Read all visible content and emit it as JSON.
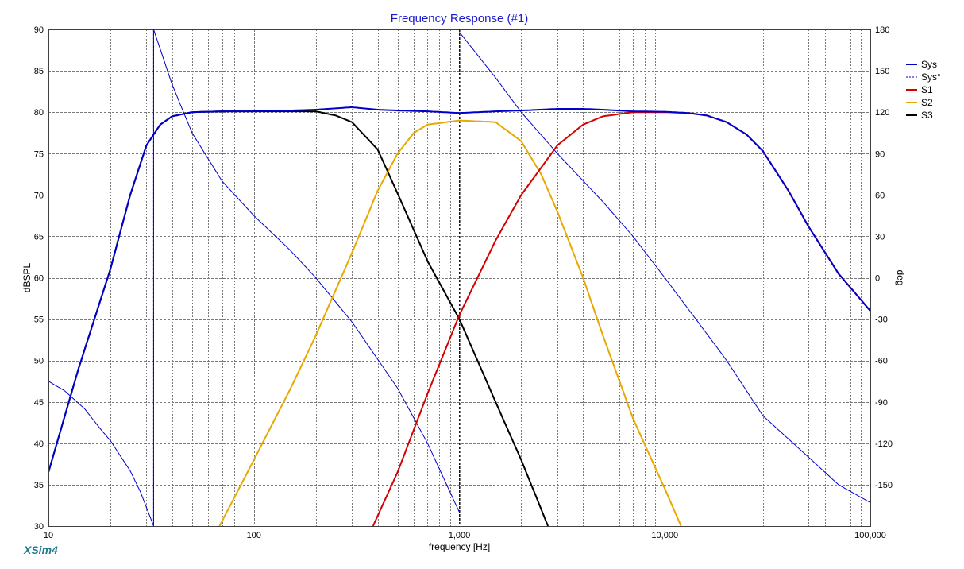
{
  "window": {
    "app_name": "XSim4"
  },
  "colors": {
    "background": "#ffffff",
    "grid": "#7a7a7a",
    "title": "#1a1ad0",
    "sys": "#0000cc",
    "sys_phase": "#0000cc",
    "s1": "#d40000",
    "s2": "#e8a800",
    "s3": "#000000",
    "brand": "#1f7a8c"
  },
  "chart_data": {
    "type": "line",
    "title": "Frequency Response (#1)",
    "xlabel": "frequency [Hz]",
    "ylabel": "dBSPL",
    "y2label": "deg",
    "xscale": "log",
    "xlim": [
      10,
      100000
    ],
    "ylim": [
      30,
      90
    ],
    "y2lim": [
      -180,
      180
    ],
    "grid": true,
    "legend_position": "right",
    "x_ticks": [
      {
        "value": 10,
        "label": "10"
      },
      {
        "value": 100,
        "label": "100"
      },
      {
        "value": 1000,
        "label": "1,000"
      },
      {
        "value": 10000,
        "label": "10,000"
      },
      {
        "value": 100000,
        "label": "100,000"
      }
    ],
    "y_ticks": [
      {
        "value": 30,
        "label": "30"
      },
      {
        "value": 35,
        "label": "35"
      },
      {
        "value": 40,
        "label": "40"
      },
      {
        "value": 45,
        "label": "45"
      },
      {
        "value": 50,
        "label": "50"
      },
      {
        "value": 55,
        "label": "55"
      },
      {
        "value": 60,
        "label": "60"
      },
      {
        "value": 65,
        "label": "65"
      },
      {
        "value": 70,
        "label": "70"
      },
      {
        "value": 75,
        "label": "75"
      },
      {
        "value": 80,
        "label": "80"
      },
      {
        "value": 85,
        "label": "85"
      },
      {
        "value": 90,
        "label": "90"
      }
    ],
    "y2_ticks": [
      {
        "value": 180,
        "label": "180"
      },
      {
        "value": 150,
        "label": "150"
      },
      {
        "value": 120,
        "label": "120"
      },
      {
        "value": 90,
        "label": "90"
      },
      {
        "value": 60,
        "label": "60"
      },
      {
        "value": 30,
        "label": "30"
      },
      {
        "value": 0,
        "label": "0"
      },
      {
        "value": -30,
        "label": "-30"
      },
      {
        "value": -60,
        "label": "-60"
      },
      {
        "value": -90,
        "label": "-90"
      },
      {
        "value": -120,
        "label": "-120"
      },
      {
        "value": -150,
        "label": "-150"
      }
    ],
    "series": [
      {
        "name": "Sys",
        "axis": "left",
        "style": "solid",
        "color_key": "sys",
        "width": 2,
        "points": [
          [
            10,
            36.5
          ],
          [
            14,
            49
          ],
          [
            20,
            61
          ],
          [
            25,
            70
          ],
          [
            30,
            76
          ],
          [
            35,
            78.5
          ],
          [
            40,
            79.5
          ],
          [
            50,
            80
          ],
          [
            70,
            80.1
          ],
          [
            100,
            80.1
          ],
          [
            150,
            80.2
          ],
          [
            200,
            80.3
          ],
          [
            300,
            80.6
          ],
          [
            400,
            80.3
          ],
          [
            500,
            80.2
          ],
          [
            700,
            80.1
          ],
          [
            1000,
            79.9
          ],
          [
            1500,
            80.1
          ],
          [
            2000,
            80.2
          ],
          [
            3000,
            80.4
          ],
          [
            4000,
            80.4
          ],
          [
            5000,
            80.3
          ],
          [
            7000,
            80.1
          ],
          [
            10000,
            80.05
          ],
          [
            13000,
            79.9
          ],
          [
            16000,
            79.6
          ],
          [
            20000,
            78.8
          ],
          [
            25000,
            77.3
          ],
          [
            30000,
            75.3
          ],
          [
            40000,
            70.5
          ],
          [
            50000,
            66.2
          ],
          [
            70000,
            60.5
          ],
          [
            100000,
            56
          ]
        ]
      },
      {
        "name": "Sys°",
        "axis": "right",
        "style": "dashed",
        "color_key": "sys_phase",
        "width": 1,
        "phase_wraps": [
          32.5,
          1000
        ],
        "points": [
          [
            10,
            -75
          ],
          [
            12,
            -82
          ],
          [
            15,
            -95
          ],
          [
            18,
            -110
          ],
          [
            20,
            -118
          ],
          [
            25,
            -140
          ],
          [
            28,
            -155
          ],
          [
            32.5,
            -180
          ],
          [
            32.5,
            180
          ],
          [
            40,
            140
          ],
          [
            50,
            105
          ],
          [
            70,
            70
          ],
          [
            100,
            45
          ],
          [
            150,
            20
          ],
          [
            200,
            0
          ],
          [
            300,
            -32
          ],
          [
            500,
            -80
          ],
          [
            700,
            -120
          ],
          [
            1000,
            -170
          ],
          [
            1000,
            178
          ],
          [
            1500,
            145
          ],
          [
            2000,
            120
          ],
          [
            3000,
            90
          ],
          [
            5000,
            55
          ],
          [
            7000,
            30
          ],
          [
            10000,
            0
          ],
          [
            15000,
            -35
          ],
          [
            20000,
            -60
          ],
          [
            30000,
            -100
          ],
          [
            50000,
            -130
          ],
          [
            70000,
            -150
          ],
          [
            100000,
            -163
          ]
        ]
      },
      {
        "name": "S1",
        "axis": "left",
        "style": "solid",
        "color_key": "s1",
        "width": 2,
        "points": [
          [
            380,
            30
          ],
          [
            500,
            36.5
          ],
          [
            700,
            46
          ],
          [
            1000,
            55.5
          ],
          [
            1500,
            64.5
          ],
          [
            2000,
            70
          ],
          [
            3000,
            76
          ],
          [
            4000,
            78.5
          ],
          [
            5000,
            79.5
          ],
          [
            7000,
            80
          ],
          [
            10000,
            80
          ],
          [
            13000,
            79.9
          ],
          [
            16000,
            79.6
          ],
          [
            20000,
            78.8
          ],
          [
            25000,
            77.3
          ],
          [
            30000,
            75.3
          ],
          [
            40000,
            70.5
          ],
          [
            50000,
            66.2
          ],
          [
            70000,
            60.5
          ],
          [
            100000,
            56
          ]
        ]
      },
      {
        "name": "S2",
        "axis": "left",
        "style": "solid",
        "color_key": "s2",
        "width": 2,
        "points": [
          [
            68,
            30
          ],
          [
            100,
            38
          ],
          [
            150,
            46.5
          ],
          [
            200,
            53
          ],
          [
            300,
            63
          ],
          [
            400,
            70.5
          ],
          [
            500,
            75
          ],
          [
            600,
            77.5
          ],
          [
            700,
            78.5
          ],
          [
            1000,
            79
          ],
          [
            1500,
            78.8
          ],
          [
            2000,
            76.5
          ],
          [
            2500,
            72.5
          ],
          [
            3000,
            68
          ],
          [
            4000,
            60
          ],
          [
            5000,
            53
          ],
          [
            7000,
            43
          ],
          [
            10000,
            34.5
          ],
          [
            12000,
            30
          ]
        ]
      },
      {
        "name": "S3",
        "axis": "left",
        "style": "solid",
        "color_key": "s3",
        "width": 2,
        "points": [
          [
            10,
            36.5
          ],
          [
            14,
            49
          ],
          [
            20,
            61
          ],
          [
            25,
            70
          ],
          [
            30,
            76
          ],
          [
            35,
            78.5
          ],
          [
            40,
            79.5
          ],
          [
            50,
            80
          ],
          [
            70,
            80.1
          ],
          [
            100,
            80.1
          ],
          [
            150,
            80.1
          ],
          [
            200,
            80.1
          ],
          [
            250,
            79.6
          ],
          [
            300,
            78.8
          ],
          [
            400,
            75.5
          ],
          [
            500,
            70.2
          ],
          [
            700,
            62
          ],
          [
            1000,
            55
          ],
          [
            1500,
            45
          ],
          [
            2000,
            38
          ],
          [
            2700,
            30
          ]
        ]
      }
    ]
  }
}
